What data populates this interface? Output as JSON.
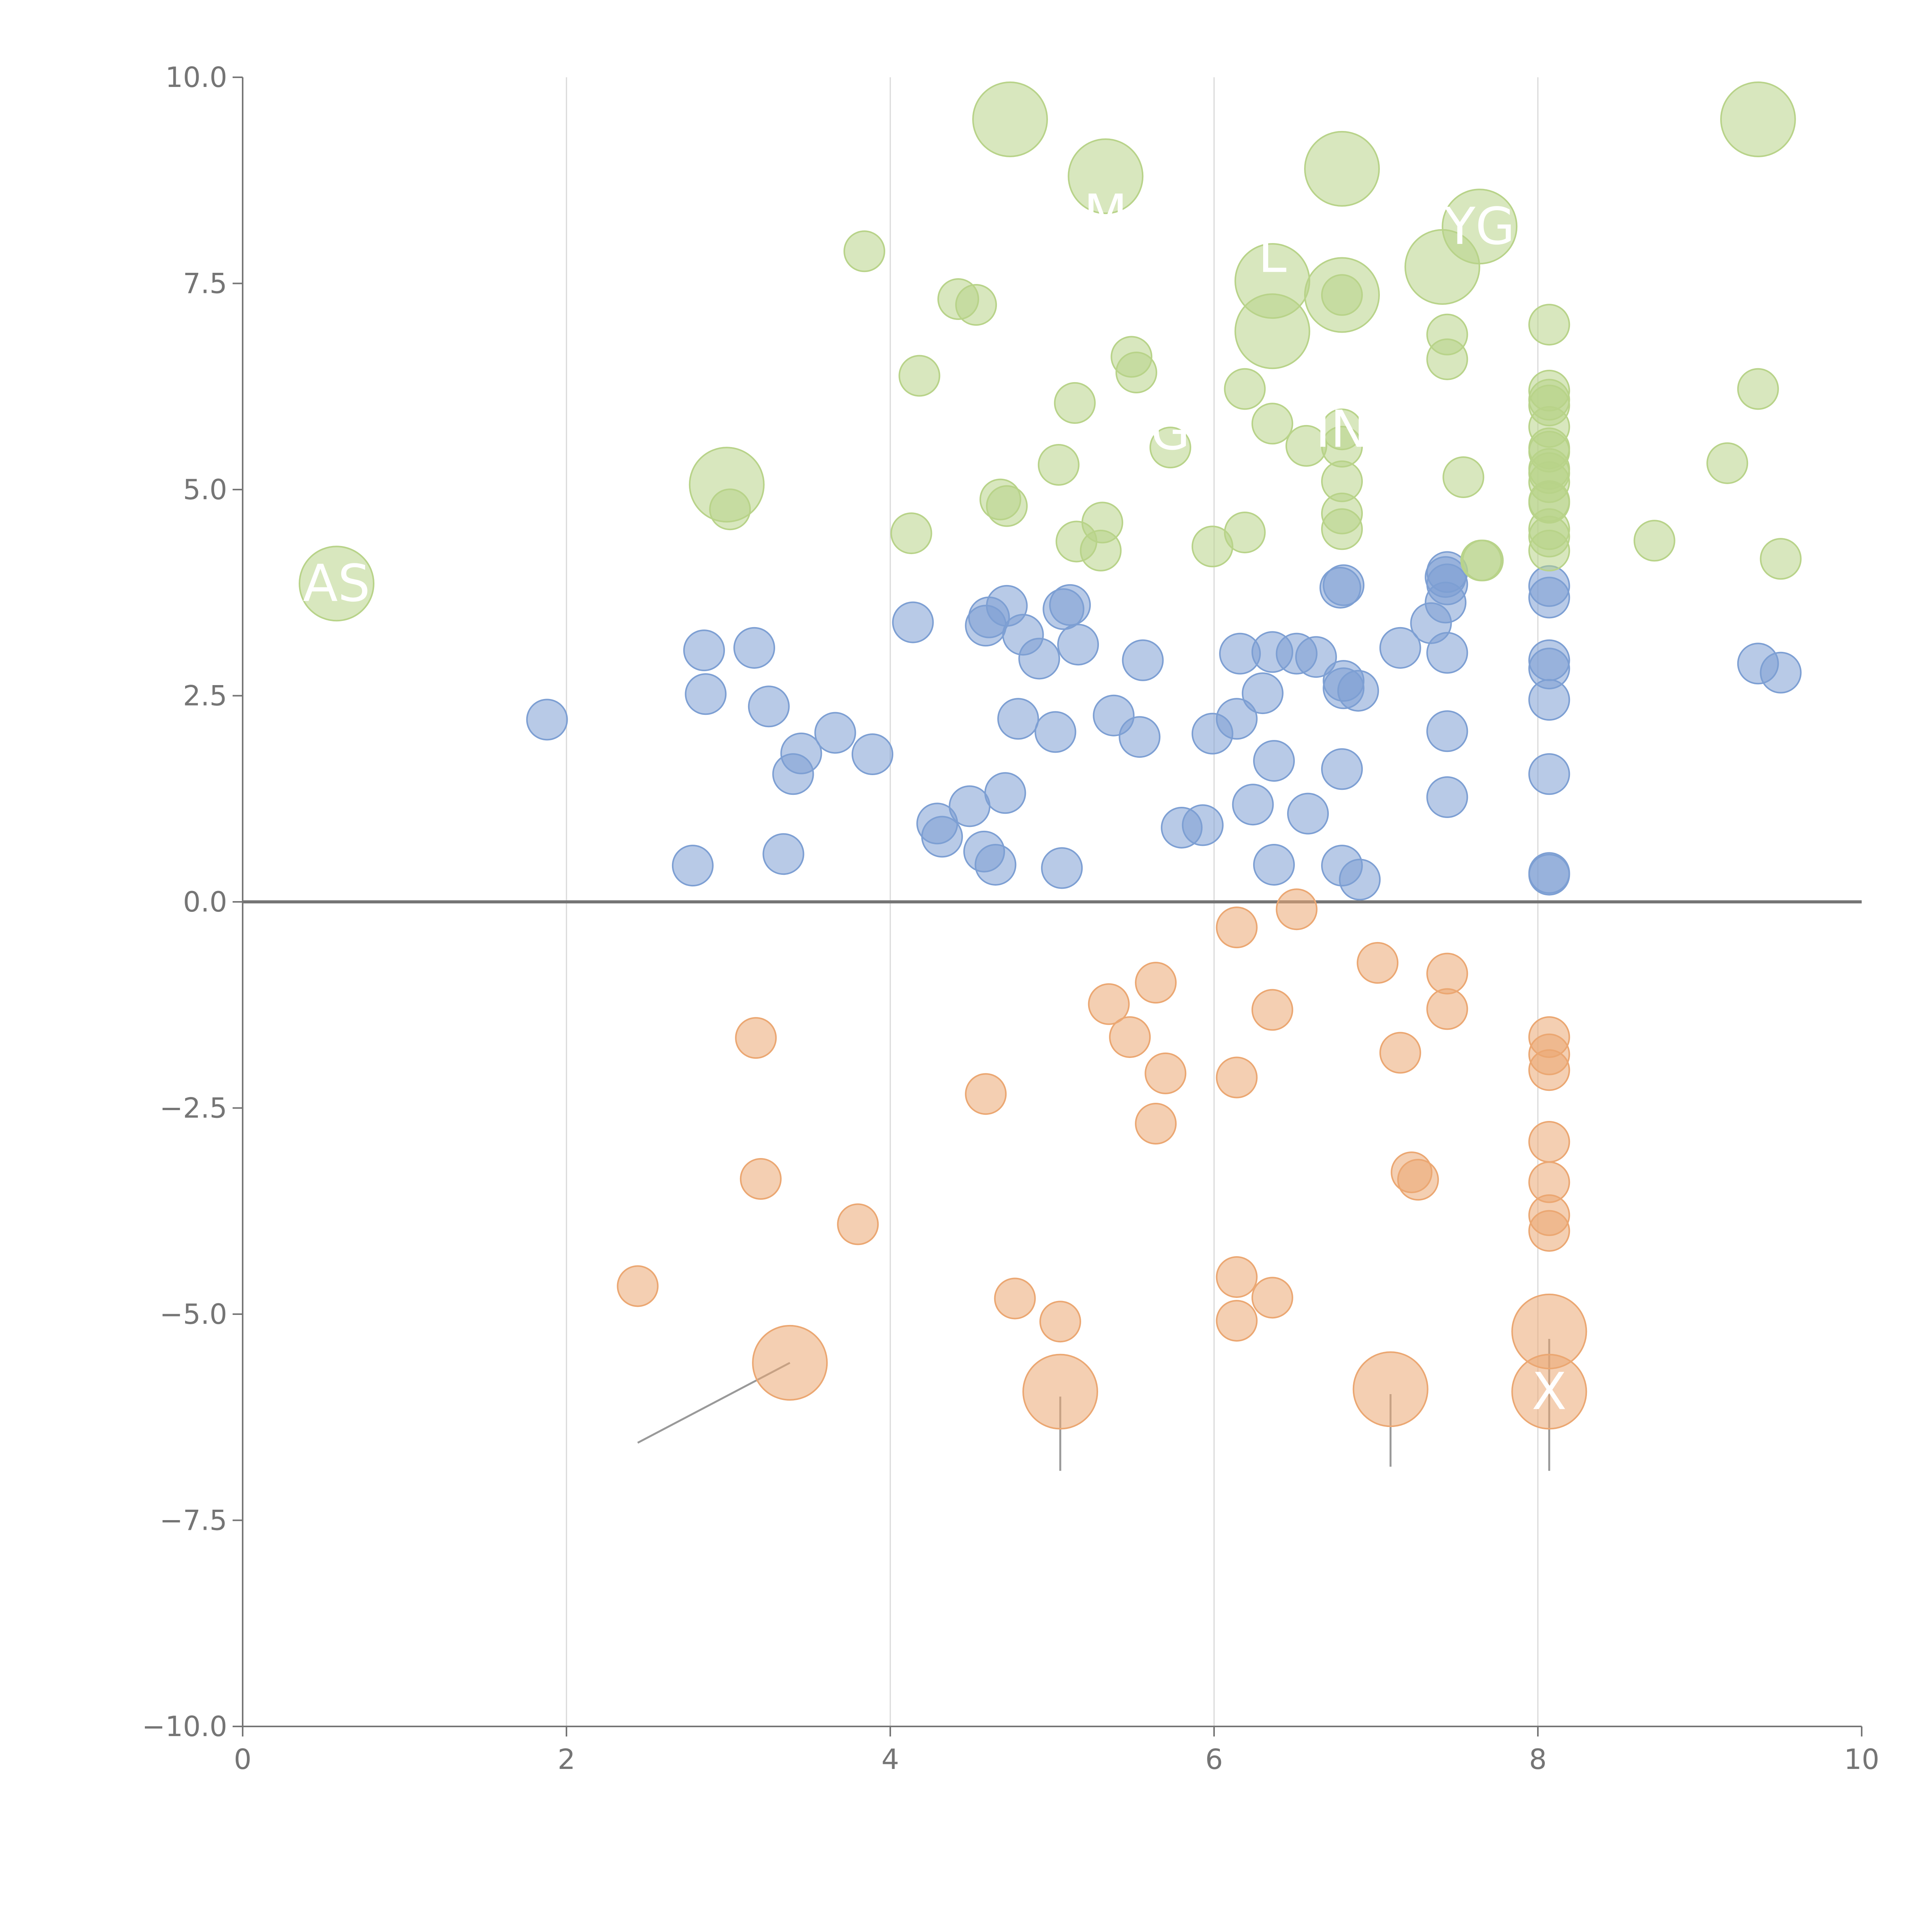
{
  "chart_data": {
    "type": "scatter",
    "title": "",
    "xlabel": "",
    "ylabel": "",
    "xlim": [
      0,
      10
    ],
    "ylim": [
      -10,
      10
    ],
    "x_ticks": [
      0,
      2,
      4,
      6,
      8,
      10
    ],
    "y_ticks": [
      10,
      7.5,
      5,
      2.5,
      0,
      -2.5,
      -5,
      -7.5,
      -10
    ],
    "x_tick_labels": [
      "0",
      "2",
      "4",
      "6",
      "8",
      "10"
    ],
    "y_tick_labels": [
      "10.0",
      "7.5",
      "5.0",
      "2.5",
      "0.0",
      "−2.5",
      "−5.0",
      "−7.5",
      "−10.0"
    ],
    "grid": "vertical",
    "zero_line": true,
    "colors": {
      "blue": "#7d9fd3",
      "orange": "#eba772",
      "green": "#b8d389",
      "axis": "#757575",
      "grid": "#d9d9d9",
      "label": "#ffffff",
      "leader": "#999999"
    },
    "series": [
      {
        "name": "blue",
        "color": "#7d9fd3",
        "points": [
          [
            1.88,
            2.21
          ],
          [
            2.78,
            0.44
          ],
          [
            2.85,
            3.05
          ],
          [
            2.86,
            2.52
          ],
          [
            3.16,
            3.08
          ],
          [
            3.25,
            2.37
          ],
          [
            3.34,
            0.58
          ],
          [
            3.4,
            1.55
          ],
          [
            3.45,
            1.8
          ],
          [
            3.66,
            2.05
          ],
          [
            3.89,
            1.79
          ],
          [
            4.14,
            3.39
          ],
          [
            4.29,
            0.95
          ],
          [
            4.32,
            0.79
          ],
          [
            4.49,
            1.16
          ],
          [
            4.58,
            0.61
          ],
          [
            4.59,
            3.35
          ],
          [
            4.61,
            3.45
          ],
          [
            4.65,
            0.45
          ],
          [
            4.71,
            1.32
          ],
          [
            4.72,
            3.59
          ],
          [
            4.79,
            2.22
          ],
          [
            4.82,
            3.24
          ],
          [
            4.92,
            2.95
          ],
          [
            5.02,
            2.06
          ],
          [
            5.06,
            0.41
          ],
          [
            5.07,
            3.55
          ],
          [
            5.11,
            3.6
          ],
          [
            5.16,
            3.12
          ],
          [
            5.38,
            2.26
          ],
          [
            5.54,
            2.0
          ],
          [
            5.56,
            2.93
          ],
          [
            5.8,
            0.9
          ],
          [
            5.93,
            0.93
          ],
          [
            5.99,
            2.04
          ],
          [
            6.14,
            2.22
          ],
          [
            6.16,
            3.01
          ],
          [
            6.24,
            1.18
          ],
          [
            6.3,
            2.53
          ],
          [
            6.36,
            3.03
          ],
          [
            6.37,
            1.71
          ],
          [
            6.37,
            0.45
          ],
          [
            6.51,
            3.01
          ],
          [
            6.58,
            1.07
          ],
          [
            6.63,
            2.97
          ],
          [
            6.78,
            3.81
          ],
          [
            6.79,
            0.44
          ],
          [
            6.79,
            1.61
          ],
          [
            6.8,
            2.59
          ],
          [
            6.8,
            2.68
          ],
          [
            6.8,
            3.84
          ],
          [
            6.89,
            2.56
          ],
          [
            6.9,
            0.27
          ],
          [
            7.15,
            3.08
          ],
          [
            7.34,
            3.38
          ],
          [
            7.43,
            3.63
          ],
          [
            7.43,
            3.94
          ],
          [
            7.44,
            3.85
          ],
          [
            7.44,
            4.0
          ],
          [
            7.44,
            3.02
          ],
          [
            7.44,
            1.27
          ],
          [
            7.44,
            2.07
          ],
          [
            8.07,
            3.83
          ],
          [
            8.07,
            3.69
          ],
          [
            8.07,
            2.93
          ],
          [
            8.07,
            2.83
          ],
          [
            8.07,
            2.45
          ],
          [
            8.07,
            1.55
          ],
          [
            8.07,
            0.35
          ],
          [
            8.07,
            0.33
          ],
          [
            9.36,
            2.89
          ],
          [
            9.5,
            2.78
          ]
        ],
        "size": 1
      },
      {
        "name": "orange",
        "color": "#eba772",
        "points": [
          [
            2.44,
            -4.66
          ],
          [
            3.17,
            -1.65
          ],
          [
            3.2,
            -3.36
          ],
          [
            3.8,
            -3.91
          ],
          [
            4.59,
            -2.33
          ],
          [
            4.77,
            -4.81
          ],
          [
            5.05,
            -5.09
          ],
          [
            5.35,
            -1.24
          ],
          [
            5.48,
            -1.64
          ],
          [
            5.64,
            -0.98
          ],
          [
            5.64,
            -2.69
          ],
          [
            5.7,
            -2.08
          ],
          [
            6.14,
            -0.31
          ],
          [
            6.14,
            -2.13
          ],
          [
            6.14,
            -4.55
          ],
          [
            6.14,
            -5.08
          ],
          [
            6.36,
            -1.31
          ],
          [
            6.36,
            -4.8
          ],
          [
            6.51,
            -0.09
          ],
          [
            7.01,
            -0.74
          ],
          [
            7.15,
            -1.83
          ],
          [
            7.22,
            -3.28
          ],
          [
            7.26,
            -3.37
          ],
          [
            7.44,
            -0.87
          ],
          [
            7.44,
            -1.3
          ],
          [
            8.07,
            -1.64
          ],
          [
            8.07,
            -1.85
          ],
          [
            8.07,
            -2.04
          ],
          [
            8.07,
            -2.91
          ],
          [
            8.07,
            -3.4
          ],
          [
            8.07,
            -3.8
          ],
          [
            8.07,
            -3.99
          ]
        ],
        "size": 1,
        "large_points": [
          [
            3.38,
            -5.59
          ],
          [
            5.05,
            -5.94
          ],
          [
            7.09,
            -5.91
          ],
          [
            8.07,
            -5.21
          ],
          [
            8.07,
            -5.94
          ]
        ]
      },
      {
        "name": "green",
        "color": "#b8d389",
        "points": [
          [
            3.01,
            4.76
          ],
          [
            3.84,
            7.89
          ],
          [
            4.13,
            4.47
          ],
          [
            4.18,
            6.38
          ],
          [
            4.42,
            7.31
          ],
          [
            4.53,
            7.24
          ],
          [
            4.68,
            4.88
          ],
          [
            4.72,
            4.8
          ],
          [
            5.04,
            5.3
          ],
          [
            5.14,
            6.05
          ],
          [
            5.15,
            4.37
          ],
          [
            5.3,
            4.26
          ],
          [
            5.31,
            4.6
          ],
          [
            5.49,
            6.61
          ],
          [
            5.52,
            6.42
          ],
          [
            5.73,
            5.51
          ],
          [
            5.99,
            4.31
          ],
          [
            6.19,
            6.22
          ],
          [
            6.19,
            4.48
          ],
          [
            6.36,
            5.8
          ],
          [
            6.57,
            5.53
          ],
          [
            6.79,
            5.73
          ],
          [
            6.79,
            5.52
          ],
          [
            6.79,
            5.1
          ],
          [
            6.79,
            4.71
          ],
          [
            6.79,
            4.52
          ],
          [
            6.79,
            7.36
          ],
          [
            7.44,
            6.88
          ],
          [
            7.44,
            6.58
          ],
          [
            7.54,
            5.15
          ],
          [
            7.65,
            4.14
          ],
          [
            7.66,
            4.14
          ],
          [
            8.07,
            7.0
          ],
          [
            8.07,
            6.2
          ],
          [
            8.07,
            6.09
          ],
          [
            8.07,
            6.02
          ],
          [
            8.07,
            5.76
          ],
          [
            8.07,
            5.5
          ],
          [
            8.07,
            5.46
          ],
          [
            8.07,
            5.25
          ],
          [
            8.07,
            5.2
          ],
          [
            8.07,
            5.09
          ],
          [
            8.07,
            4.86
          ],
          [
            8.07,
            4.84
          ],
          [
            8.07,
            4.52
          ],
          [
            8.07,
            4.43
          ],
          [
            8.07,
            4.26
          ],
          [
            8.72,
            4.38
          ],
          [
            9.17,
            5.32
          ],
          [
            9.36,
            6.22
          ],
          [
            9.5,
            4.16
          ]
        ],
        "size": 1,
        "large_points": [
          [
            0.58,
            3.86
          ],
          [
            2.99,
            5.06
          ],
          [
            4.74,
            9.49
          ],
          [
            5.33,
            8.8
          ],
          [
            6.36,
            7.53
          ],
          [
            6.36,
            6.92
          ],
          [
            6.79,
            8.89
          ],
          [
            6.79,
            7.36
          ],
          [
            7.41,
            7.7
          ],
          [
            7.64,
            8.19
          ],
          [
            9.36,
            9.49
          ]
        ]
      }
    ],
    "labels": [
      {
        "text": "AS",
        "x": 0.58,
        "y": 3.86
      },
      {
        "text": "M",
        "x": 5.33,
        "y": 8.35
      },
      {
        "text": "YG",
        "x": 7.64,
        "y": 8.19
      },
      {
        "text": "L",
        "x": 6.36,
        "y": 7.85
      },
      {
        "text": "G",
        "x": 5.73,
        "y": 5.7
      },
      {
        "text": "IN",
        "x": 6.79,
        "y": 5.73
      },
      {
        "text": "X",
        "x": 8.07,
        "y": -5.94
      }
    ],
    "leader_lines": [
      {
        "x1": 2.44,
        "y1": -6.56,
        "x2": 3.38,
        "y2": -5.59
      },
      {
        "x1": 5.05,
        "y1": -6.9,
        "x2": 5.05,
        "y2": -6.0
      },
      {
        "x1": 7.09,
        "y1": -6.85,
        "x2": 7.09,
        "y2": -5.97
      },
      {
        "x1": 8.07,
        "y1": -6.9,
        "x2": 8.07,
        "y2": -5.3
      }
    ]
  }
}
